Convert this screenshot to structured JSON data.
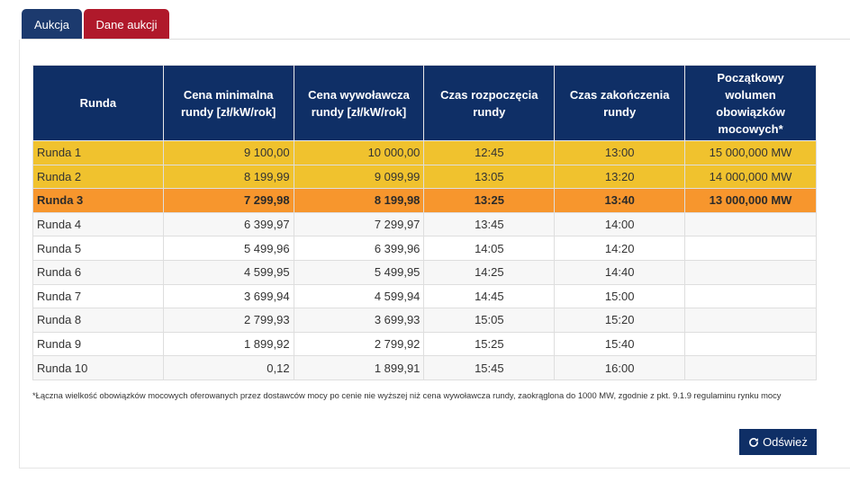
{
  "tabs": [
    {
      "label": "Aukcja"
    },
    {
      "label": "Dane aukcji"
    }
  ],
  "table": {
    "headers": [
      "Runda",
      "Cena minimalna rundy [zł/kW/rok]",
      "Cena wywoławcza rundy [zł/kW/rok]",
      "Czas rozpoczęcia rundy",
      "Czas zakończenia rundy",
      "Początkowy wolumen obowiązków mocowych*"
    ],
    "rows": [
      {
        "status": "done",
        "cells": [
          "Runda 1",
          "9 100,00",
          "10 000,00",
          "12:45",
          "13:00",
          "15 000,000 MW"
        ]
      },
      {
        "status": "done",
        "cells": [
          "Runda 2",
          "8 199,99",
          "9 099,99",
          "13:05",
          "13:20",
          "14 000,000 MW"
        ]
      },
      {
        "status": "active",
        "cells": [
          "Runda 3",
          "7 299,98",
          "8 199,98",
          "13:25",
          "13:40",
          "13 000,000 MW"
        ]
      },
      {
        "status": "odd",
        "cells": [
          "Runda 4",
          "6 399,97",
          "7 299,97",
          "13:45",
          "14:00",
          ""
        ]
      },
      {
        "status": "even",
        "cells": [
          "Runda 5",
          "5 499,96",
          "6 399,96",
          "14:05",
          "14:20",
          ""
        ]
      },
      {
        "status": "odd",
        "cells": [
          "Runda 6",
          "4 599,95",
          "5 499,95",
          "14:25",
          "14:40",
          ""
        ]
      },
      {
        "status": "even",
        "cells": [
          "Runda 7",
          "3 699,94",
          "4 599,94",
          "14:45",
          "15:00",
          ""
        ]
      },
      {
        "status": "odd",
        "cells": [
          "Runda 8",
          "2 799,93",
          "3 699,93",
          "15:05",
          "15:20",
          ""
        ]
      },
      {
        "status": "even",
        "cells": [
          "Runda 9",
          "1 899,92",
          "2 799,92",
          "15:25",
          "15:40",
          ""
        ]
      },
      {
        "status": "odd",
        "cells": [
          "Runda 10",
          "0,12",
          "1 899,91",
          "15:45",
          "16:00",
          ""
        ]
      }
    ]
  },
  "footnote": "*Łączna wielkość obowiązków mocowych oferowanych przez dostawców mocy po cenie nie wyższej niż cena wywoławcza rundy, zaokrąglona do 1000 MW, zgodnie z pkt. 9.1.9 regulaminu rynku mocy",
  "refresh_button": {
    "label": "Odśwież",
    "icon": "refresh-icon"
  },
  "colors": {
    "header_bg": "#0f2f66",
    "tab_aukcja": "#1c3a6e",
    "tab_dane": "#b0192b",
    "row_done": "#f0c22e",
    "row_active": "#f7962d"
  }
}
